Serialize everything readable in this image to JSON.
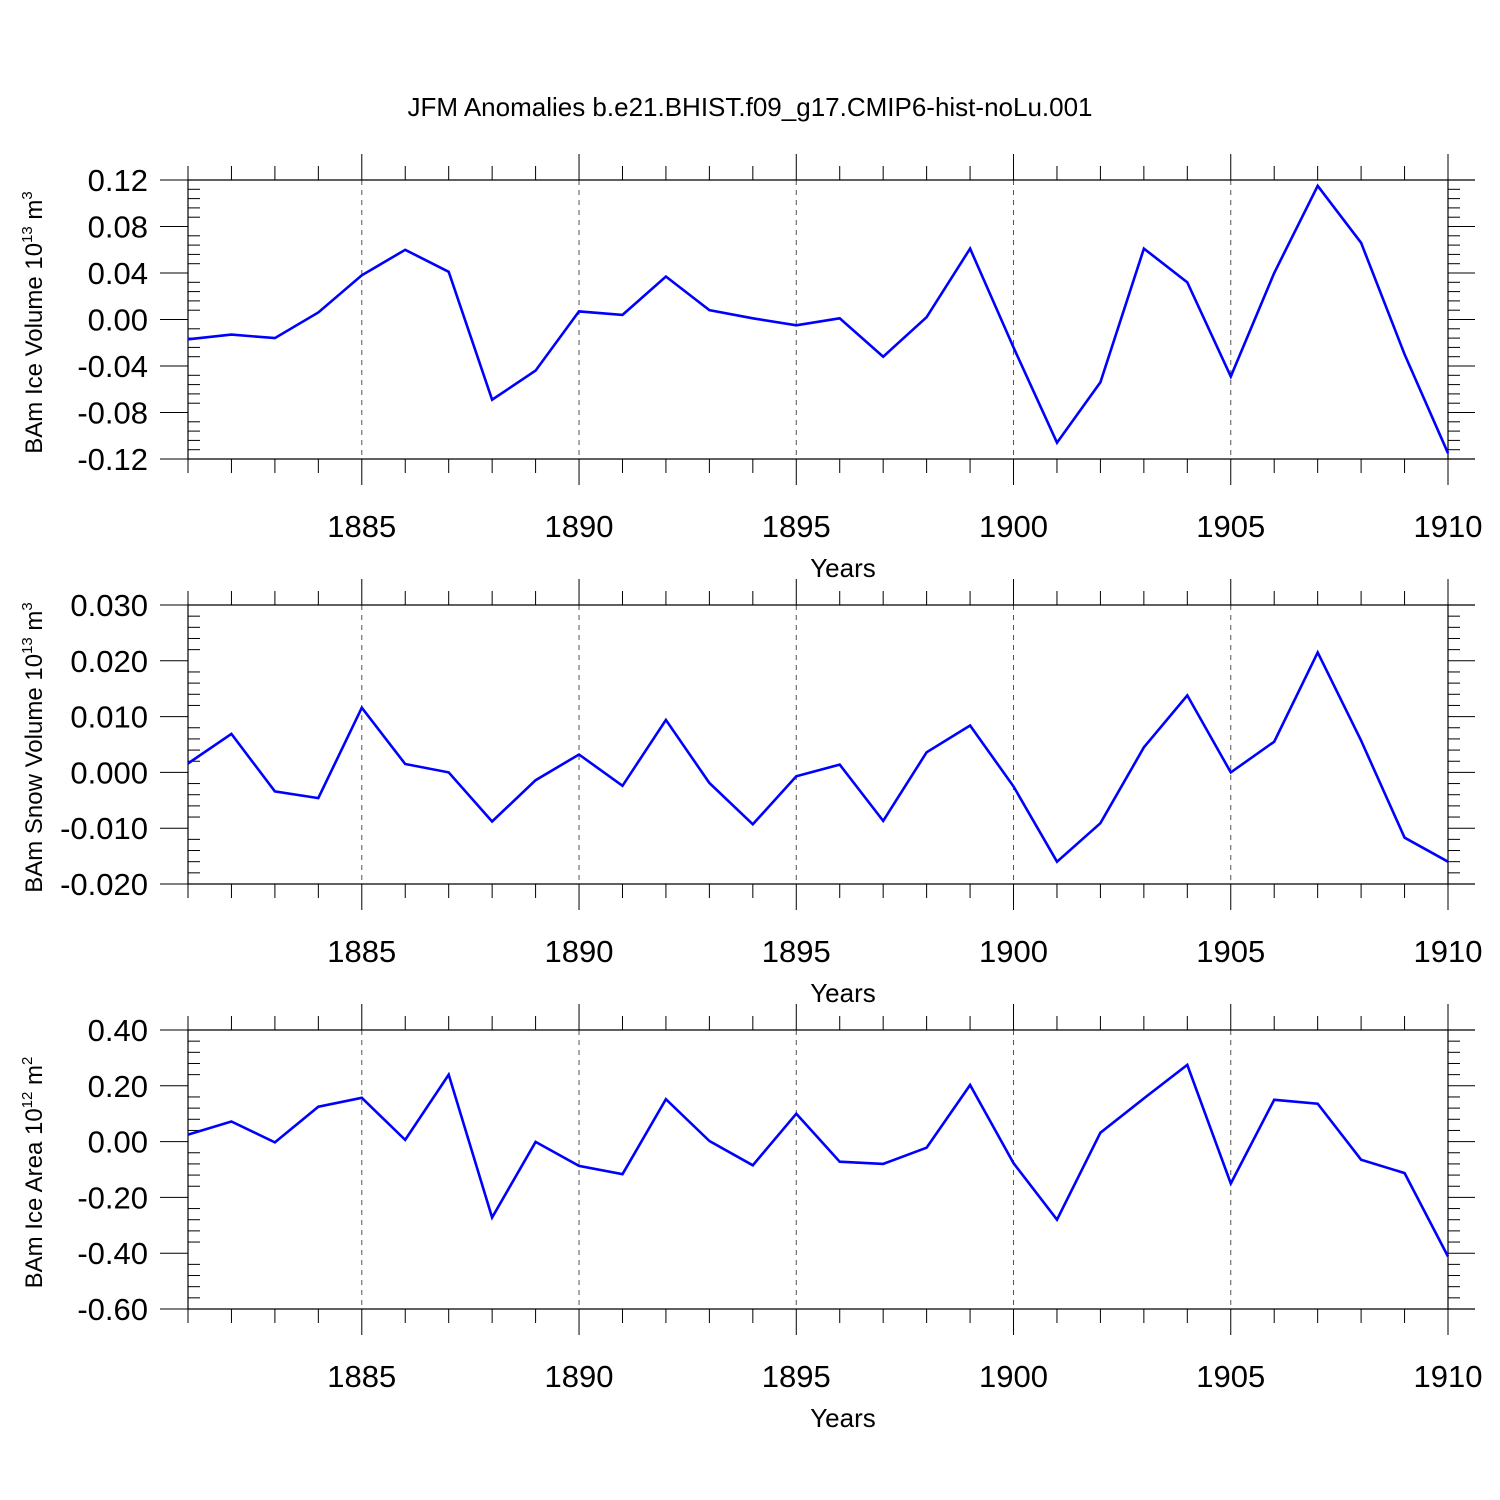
{
  "title": "JFM Anomalies b.e21.BHIST.f09_g17.CMIP6-hist-noLu.001",
  "line_color": "#0000ff",
  "chart_data": [
    {
      "type": "line",
      "ylabel": {
        "text": "BAm Ice Volume 10",
        "sup": "13",
        "unit": " m",
        "unit_sup": "3"
      },
      "xlabel": "Years",
      "xlim": [
        1881,
        1910
      ],
      "ylim": [
        -0.12,
        0.12
      ],
      "x_ticks": [
        1885,
        1890,
        1895,
        1900,
        1905,
        1910
      ],
      "y_ticks": [
        -0.12,
        -0.08,
        -0.04,
        0.0,
        0.04,
        0.08,
        0.12
      ],
      "y_tick_labels": [
        "-0.12",
        "-0.08",
        "-0.04",
        "0.00",
        "0.04",
        "0.08",
        "0.12"
      ],
      "x": [
        1881,
        1882,
        1883,
        1884,
        1885,
        1886,
        1887,
        1888,
        1889,
        1890,
        1891,
        1892,
        1893,
        1894,
        1895,
        1896,
        1897,
        1898,
        1899,
        1900,
        1901,
        1902,
        1903,
        1904,
        1905,
        1906,
        1907,
        1908,
        1909,
        1910
      ],
      "series": [
        {
          "values": [
            -0.017,
            -0.013,
            -0.016,
            0.006,
            0.038,
            0.06,
            0.041,
            -0.069,
            -0.044,
            0.007,
            0.004,
            0.037,
            0.008,
            0.001,
            -0.005,
            0.001,
            -0.032,
            0.002,
            0.061,
            -0.024,
            -0.106,
            -0.054,
            0.061,
            0.032,
            -0.049,
            0.04,
            0.115,
            0.066,
            -0.03,
            -0.115
          ]
        }
      ]
    },
    {
      "type": "line",
      "ylabel": {
        "text": "BAm Snow Volume 10",
        "sup": "13",
        "unit": " m",
        "unit_sup": "3"
      },
      "xlabel": "Years",
      "xlim": [
        1881,
        1910
      ],
      "ylim": [
        -0.02,
        0.03
      ],
      "x_ticks": [
        1885,
        1890,
        1895,
        1900,
        1905,
        1910
      ],
      "y_ticks": [
        -0.02,
        -0.01,
        0.0,
        0.01,
        0.02,
        0.03
      ],
      "y_tick_labels": [
        "-0.020",
        "-0.010",
        "0.000",
        "0.010",
        "0.020",
        "0.030"
      ],
      "x": [
        1881,
        1882,
        1883,
        1884,
        1885,
        1886,
        1887,
        1888,
        1889,
        1890,
        1891,
        1892,
        1893,
        1894,
        1895,
        1896,
        1897,
        1898,
        1899,
        1900,
        1901,
        1902,
        1903,
        1904,
        1905,
        1906,
        1907,
        1908,
        1909,
        1910
      ],
      "series": [
        {
          "values": [
            0.0016,
            0.0069,
            -0.0034,
            -0.0046,
            0.0116,
            0.0015,
            0.0,
            -0.0088,
            -0.0014,
            0.0032,
            -0.0024,
            0.0094,
            -0.0019,
            -0.0093,
            -0.0007,
            0.0014,
            -0.0087,
            0.0036,
            0.0084,
            -0.0025,
            -0.016,
            -0.0091,
            0.0045,
            0.0138,
            0.0,
            0.0055,
            0.0215,
            0.0057,
            -0.0117,
            -0.016
          ]
        }
      ]
    },
    {
      "type": "line",
      "ylabel": {
        "text": "BAm Ice Area 10",
        "sup": "12",
        "unit": " m",
        "unit_sup": "2"
      },
      "xlabel": "Years",
      "xlim": [
        1881,
        1910
      ],
      "ylim": [
        -0.6,
        0.4
      ],
      "x_ticks": [
        1885,
        1890,
        1895,
        1900,
        1905,
        1910
      ],
      "y_ticks": [
        -0.6,
        -0.4,
        -0.2,
        0.0,
        0.2,
        0.4
      ],
      "y_tick_labels": [
        "-0.60",
        "-0.40",
        "-0.20",
        "0.00",
        "0.20",
        "0.40"
      ],
      "x": [
        1881,
        1882,
        1883,
        1884,
        1885,
        1886,
        1887,
        1888,
        1889,
        1890,
        1891,
        1892,
        1893,
        1894,
        1895,
        1896,
        1897,
        1898,
        1899,
        1900,
        1901,
        1902,
        1903,
        1904,
        1905,
        1906,
        1907,
        1908,
        1909,
        1910
      ],
      "series": [
        {
          "values": [
            0.025,
            0.072,
            -0.003,
            0.125,
            0.157,
            0.006,
            0.24,
            -0.272,
            -0.001,
            -0.087,
            -0.117,
            0.152,
            0.002,
            -0.085,
            0.1,
            -0.072,
            -0.08,
            -0.022,
            0.203,
            -0.077,
            -0.28,
            0.032,
            0.155,
            0.275,
            -0.15,
            0.15,
            0.136,
            -0.065,
            -0.113,
            -0.412
          ]
        }
      ]
    }
  ]
}
